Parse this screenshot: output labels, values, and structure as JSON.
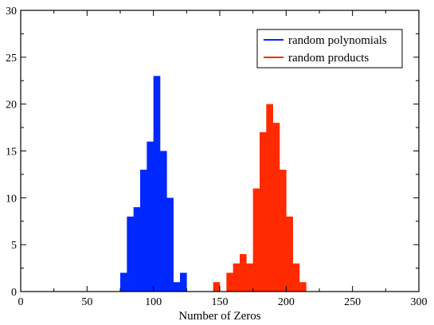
{
  "chart_data": {
    "type": "bar",
    "xlabel": "Number of Zeros",
    "ylabel": "",
    "xlim": [
      0,
      300
    ],
    "ylim": [
      0,
      30
    ],
    "xticks": [
      "0",
      "50",
      "100",
      "150",
      "200",
      "250",
      "300"
    ],
    "yticks": [
      "0",
      "5",
      "10",
      "15",
      "20",
      "25",
      "30"
    ],
    "bin_width": 5,
    "grid": false,
    "legend_position": "top-right",
    "series": [
      {
        "name": "random polynomials",
        "color": "#0028ff",
        "bins": [
          {
            "x0": 75,
            "x1": 80,
            "count": 2
          },
          {
            "x0": 80,
            "x1": 85,
            "count": 8
          },
          {
            "x0": 85,
            "x1": 90,
            "count": 9
          },
          {
            "x0": 90,
            "x1": 95,
            "count": 13
          },
          {
            "x0": 95,
            "x1": 100,
            "count": 16
          },
          {
            "x0": 100,
            "x1": 105,
            "count": 23
          },
          {
            "x0": 105,
            "x1": 110,
            "count": 15
          },
          {
            "x0": 110,
            "x1": 115,
            "count": 10
          },
          {
            "x0": 115,
            "x1": 120,
            "count": 1
          },
          {
            "x0": 120,
            "x1": 125,
            "count": 2
          }
        ]
      },
      {
        "name": "random products",
        "color": "#ff2a00",
        "bins": [
          {
            "x0": 145,
            "x1": 150,
            "count": 1
          },
          {
            "x0": 155,
            "x1": 160,
            "count": 2
          },
          {
            "x0": 160,
            "x1": 165,
            "count": 3
          },
          {
            "x0": 165,
            "x1": 170,
            "count": 4
          },
          {
            "x0": 170,
            "x1": 175,
            "count": 3
          },
          {
            "x0": 175,
            "x1": 180,
            "count": 11
          },
          {
            "x0": 180,
            "x1": 185,
            "count": 17
          },
          {
            "x0": 185,
            "x1": 190,
            "count": 20
          },
          {
            "x0": 190,
            "x1": 195,
            "count": 18
          },
          {
            "x0": 195,
            "x1": 200,
            "count": 13
          },
          {
            "x0": 200,
            "x1": 205,
            "count": 8
          },
          {
            "x0": 205,
            "x1": 210,
            "count": 3
          },
          {
            "x0": 210,
            "x1": 215,
            "count": 1
          }
        ]
      }
    ]
  }
}
